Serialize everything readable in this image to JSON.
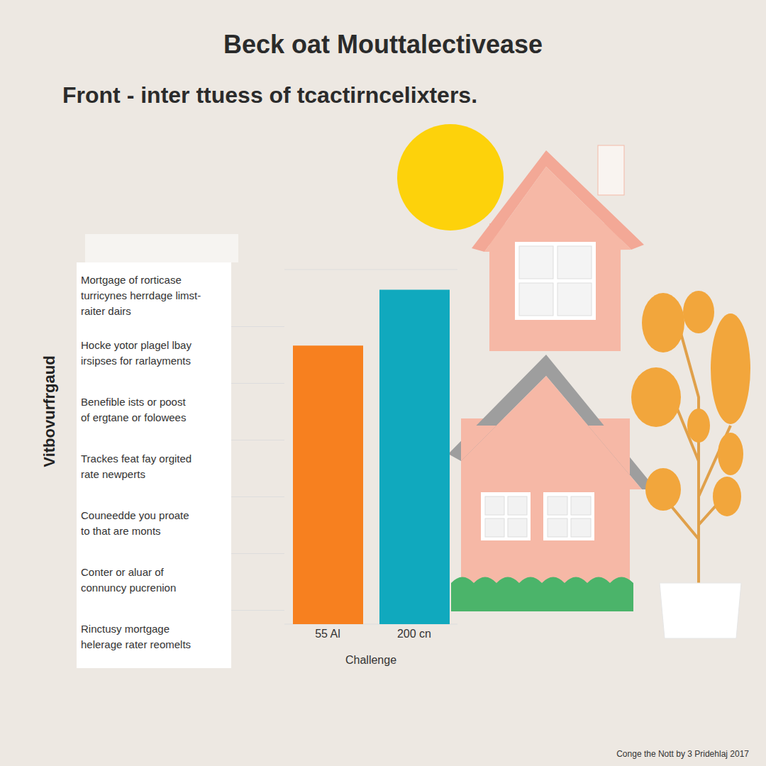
{
  "chart_data": {
    "type": "bar",
    "title": "Beck oat Mouttalectivease",
    "subtitle": "Front - inter ttuess of tcactirncelixters.",
    "x_label": "Challenge",
    "y_label": "Vitbovurfrgaud",
    "categories": [
      "55 Al",
      "200 cn"
    ],
    "values": [
      5.5,
      6.6
    ],
    "colors": [
      "#f7801f",
      "#10a9be"
    ],
    "ylim": [
      0,
      7
    ],
    "yticks": [
      0,
      1,
      2,
      3,
      4,
      5,
      6,
      7
    ],
    "grid": true,
    "tick_labels": "x",
    "annotations": [
      "Mortgage of rorticase\nturricynes herrdage limst-\nraiter dairs",
      "Hocke yotor plagel lbay\nirsipses for rarlayments",
      "Benefible ists or poost\nof ergtane or folowees",
      "Trackes feat fay orgited\nrate newperts",
      "Couneedde you proate\nto that are monts",
      "Conter or aluar of\nconnuncy pucrenion",
      "Rinctusy mortgage\nhelerage rater reomelts"
    ],
    "footer": "Conge the Nott by 3 Pridehlaj 2017"
  }
}
